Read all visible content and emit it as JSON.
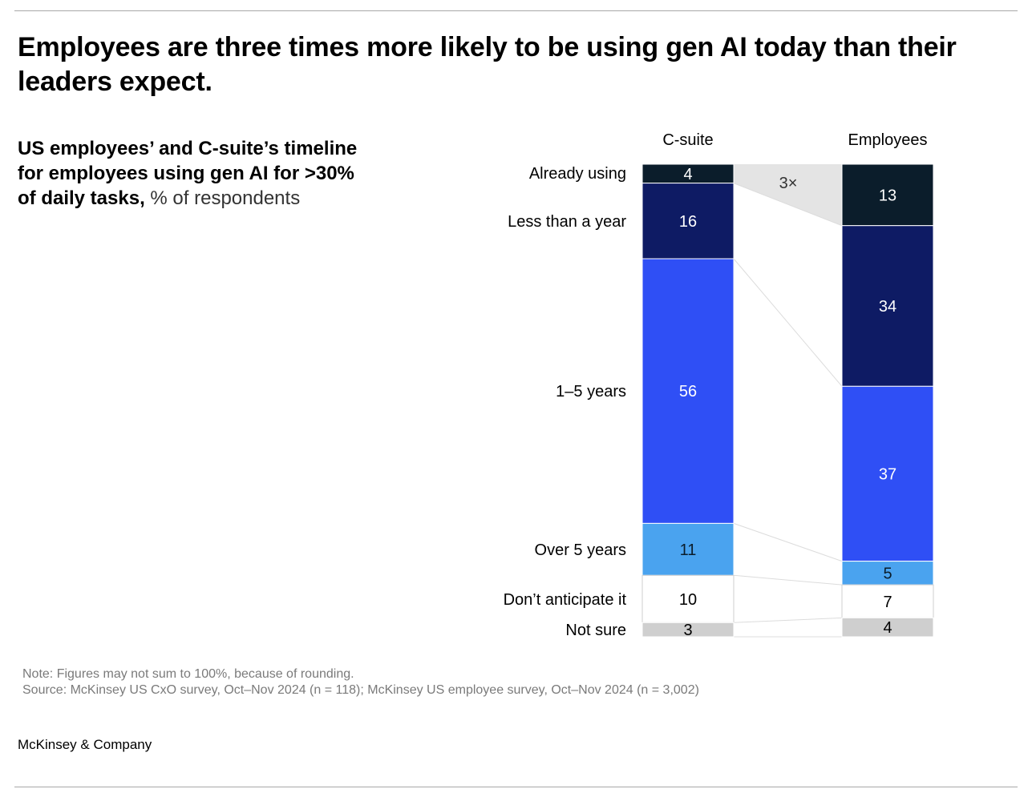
{
  "title": "Employees are three times more likely to be using gen AI today than their leaders expect.",
  "subtitle": {
    "bold": "US employees’ and C-suite’s timeline for employees using gen AI for >30% of daily tasks,",
    "light": "% of respondents"
  },
  "chart_data": {
    "type": "bar",
    "stacked": true,
    "unit": "% of respondents",
    "categories": [
      "C-suite",
      "Employees"
    ],
    "segments": [
      "Already using",
      "Less than a year",
      "1–5 years",
      "Over 5 years",
      "Don’t anticipate it",
      "Not sure"
    ],
    "series": [
      {
        "name": "Already using",
        "values": [
          4,
          13
        ],
        "color": "#0b1d2b",
        "label_color": "#ffffff"
      },
      {
        "name": "Less than a year",
        "values": [
          16,
          34
        ],
        "color": "#0e1b64",
        "label_color": "#ffffff"
      },
      {
        "name": "1–5 years",
        "values": [
          56,
          37
        ],
        "color": "#2f4ff5",
        "label_color": "#ffffff"
      },
      {
        "name": "Over 5 years",
        "values": [
          11,
          5
        ],
        "color": "#4aa3ef",
        "label_color": "#0b1d2b"
      },
      {
        "name": "Don’t anticipate it",
        "values": [
          10,
          7
        ],
        "color": "#ffffff",
        "label_color": "#000000"
      },
      {
        "name": "Not sure",
        "values": [
          3,
          4
        ],
        "color": "#cfcfcf",
        "label_color": "#000000"
      }
    ],
    "annotation": "3×",
    "connector_color": "#dcdcdc",
    "highlight_color": "#e4e4e4"
  },
  "notes": {
    "note": "Note: Figures may not sum to 100%, because of rounding.",
    "source": "Source: McKinsey US CxO survey, Oct–Nov 2024 (n = 118); McKinsey US employee survey, Oct–Nov 2024 (n = 3,002)"
  },
  "brand": "McKinsey & Company"
}
